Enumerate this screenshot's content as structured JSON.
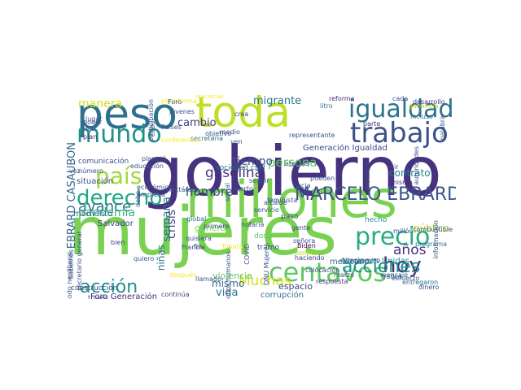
{
  "words": [
    {
      "text": "mujeres",
      "color": "#7ad151"
    },
    {
      "text": "gobierno",
      "color": "#46327e"
    },
    {
      "text": "millones",
      "color": "#7ad151"
    },
    {
      "text": "peso",
      "color": "#2c728e"
    },
    {
      "text": "toda",
      "color": "#bddf26"
    },
    {
      "text": "igualdad",
      "color": "#2c728e"
    },
    {
      "text": "trabajo",
      "color": "#3b528b"
    },
    {
      "text": "centavos",
      "color": "#5ec962"
    },
    {
      "text": "mundo",
      "color": "#21918c"
    },
    {
      "text": "derecho",
      "color": "#22a884"
    },
    {
      "text": "país",
      "color": "#a0da39"
    },
    {
      "text": "precio",
      "color": "#27ad81"
    },
    {
      "text": "Unidos",
      "color": "#482878"
    },
    {
      "text": "MARCELO EBRARD",
      "color": "#3b528b"
    },
    {
      "text": "hoy",
      "color": "#472d7b"
    },
    {
      "text": "acción",
      "color": "#21918c"
    },
    {
      "text": "acciones",
      "color": "#21918c"
    },
    {
      "text": "gasolina",
      "color": "#46327e"
    },
    {
      "text": "EBRARD CASAUBON",
      "color": "#31688e"
    },
    {
      "text": "avance",
      "color": "#2a788e"
    },
    {
      "text": "pandemia",
      "color": "#35b779"
    },
    {
      "text": "hombre",
      "color": "#3e4989"
    },
    {
      "text": "Muchas",
      "color": "#d2e21b"
    },
    {
      "text": "persona",
      "color": "#5ec962"
    },
    {
      "text": "años",
      "color": "#472d7b"
    },
    {
      "text": "manera",
      "color": "#d2e21b"
    },
    {
      "text": "migrante",
      "color": "#2c728e"
    },
    {
      "text": "cambio",
      "color": "#443983"
    },
    {
      "text": "semana",
      "color": "#2a788e"
    },
    {
      "text": "crisis",
      "color": "#414487"
    },
    {
      "text": "niñas",
      "color": "#2c728e"
    },
    {
      "text": "público",
      "color": "#b5de2b"
    },
    {
      "text": "contrato",
      "color": "#25858e"
    },
    {
      "text": "tiempo",
      "color": "#3b528b"
    },
    {
      "text": "vida",
      "color": "#2a788e"
    },
    {
      "text": "mismo",
      "color": "#31688e"
    },
    {
      "text": "género",
      "color": "#73d056"
    },
    {
      "text": "Nacional",
      "color": "#fde725"
    },
    {
      "text": "espacio",
      "color": "#414487"
    },
    {
      "text": "Generación Igualdad",
      "color": "#3e4989"
    },
    {
      "text": "Naciones Unidas",
      "color": "#1f988b"
    },
    {
      "text": "construcción",
      "color": "#3e4989"
    },
    {
      "text": "Foro Generación",
      "color": "#472d7b"
    },
    {
      "text": "corrupción",
      "color": "#2c728e"
    },
    {
      "text": "violencia",
      "color": "#5ec962"
    },
    {
      "text": "mexicano",
      "color": "#31688e"
    },
    {
      "text": "situación",
      "color": "#3b528b"
    },
    {
      "text": "comunicación",
      "color": "#3b528b"
    },
    {
      "text": "Salvador",
      "color": "#414487"
    },
    {
      "text": "momento",
      "color": "#31688e"
    },
    {
      "text": "ganancia",
      "color": "#c8e020"
    },
    {
      "text": "desarrollo",
      "color": "#46327e"
    },
    {
      "text": "programa",
      "color": "#2a788e"
    },
    {
      "text": "combustible",
      "color": "#3b528b"
    },
    {
      "text": "global",
      "color": "#2c728e"
    },
    {
      "text": "Francia",
      "color": "#414487"
    },
    {
      "text": "continúa",
      "color": "#3e4989"
    },
    {
      "text": "sociedad civil",
      "color": "#2c728e"
    },
    {
      "text": "plataforma",
      "color": "#fde725"
    },
    {
      "text": "jóvenes",
      "color": "#3b528b"
    },
    {
      "text": "hecho",
      "color": "#21918c"
    },
    {
      "text": "gente",
      "color": "#3e4989"
    },
    {
      "text": "reforma",
      "color": "#46327e"
    },
    {
      "text": "millón",
      "color": "#3e4989"
    },
    {
      "text": "Biden",
      "color": "#440154"
    },
    {
      "text": "política",
      "color": "#b5de2b"
    },
    {
      "text": "respuesta",
      "color": "#472d7b"
    },
    {
      "text": "tramo",
      "color": "#3b528b"
    },
    {
      "text": "dosis",
      "color": "#5ec962"
    },
    {
      "text": "hacia",
      "color": "#3b528b"
    },
    {
      "text": "paso",
      "color": "#3b528b"
    },
    {
      "text": "parte",
      "color": "#472d7b"
    },
    {
      "text": "misma",
      "color": "#472d7b"
    },
    {
      "text": "incluso",
      "color": "#2c728e"
    },
    {
      "text": "señora",
      "color": "#3b528b"
    },
    {
      "text": "marzo",
      "color": "#414487"
    },
    {
      "text": "colocación",
      "color": "#3e4989"
    },
    {
      "text": "haciendo",
      "color": "#414487"
    },
    {
      "text": "litro",
      "color": "#2c728e"
    },
    {
      "text": "cabo",
      "color": "#3b528b"
    },
    {
      "text": "lugar",
      "color": "#3b528b"
    },
    {
      "text": "sólo",
      "color": "#3e4989"
    },
    {
      "text": "plan",
      "color": "#472d7b"
    },
    {
      "text": "poder",
      "color": "#3e4989"
    },
    {
      "text": "número",
      "color": "#3b528b"
    },
    {
      "text": "bien",
      "color": "#3e4989"
    },
    {
      "text": "vez",
      "color": "#3b528b"
    },
    {
      "text": "fin",
      "color": "#3b528b"
    },
    {
      "text": "primera",
      "color": "#3b528b"
    },
    {
      "text": "quisiera",
      "color": "#3b528b"
    },
    {
      "text": "ir",
      "color": "#3b528b"
    },
    {
      "text": "Tobata",
      "color": "#fde725"
    },
    {
      "text": "COVID",
      "color": "#3b528b"
    },
    {
      "text": "llamado",
      "color": "#3b528b"
    },
    {
      "text": "mensaje",
      "color": "#2c728e"
    },
    {
      "text": "entregaron",
      "color": "#2c728e"
    },
    {
      "text": "dinero",
      "color": "#3b528b"
    },
    {
      "text": "esfuerzo",
      "color": "#3b528b"
    },
    {
      "text": "través",
      "color": "#3b528b"
    },
    {
      "text": "Sabemos",
      "color": "#3b528b"
    },
    {
      "text": "quiero",
      "color": "#3b528b"
    },
    {
      "text": "después",
      "color": "#fde725"
    },
    {
      "text": "empresa",
      "color": "#3b528b"
    },
    {
      "text": "debe",
      "color": "#3b528b"
    },
    {
      "text": "Foro",
      "color": "#3b528b"
    },
    {
      "text": "Paises",
      "color": "#3b528b"
    },
    {
      "text": "secretaria",
      "color": "#2c728e"
    },
    {
      "text": "objetivo",
      "color": "#3b528b"
    },
    {
      "text": "medio",
      "color": "#3b528b"
    },
    {
      "text": "ven",
      "color": "#3b528b"
    },
    {
      "text": "social",
      "color": "#3b528b"
    },
    {
      "text": "pueden",
      "color": "#3b528b"
    },
    {
      "text": "alcalde",
      "color": "#3b528b"
    },
    {
      "text": "representante",
      "color": "#3b528b"
    },
    {
      "text": "seguir",
      "color": "#3b528b"
    },
    {
      "text": "servicio",
      "color": "#3b528b"
    },
    {
      "text": "atender",
      "color": "#3b528b"
    },
    {
      "text": "notaría",
      "color": "#3b528b"
    },
    {
      "text": "feminista",
      "color": "#3b528b"
    },
    {
      "text": "compromiso",
      "color": "#3b528b"
    },
    {
      "text": "cierto",
      "color": "#3b528b"
    },
    {
      "text": "económico",
      "color": "#3b528b"
    },
    {
      "text": "educación",
      "color": "#3b528b"
    },
    {
      "text": "conferencia",
      "color": "#fde725"
    },
    {
      "text": "planteó",
      "color": "#3b528b"
    },
    {
      "text": "hectáreas",
      "color": "#3b528b"
    },
    {
      "text": "participación",
      "color": "#3b528b"
    },
    {
      "text": "cada",
      "color": "#3b528b"
    },
    {
      "text": "crea",
      "color": "#3b528b"
    },
    {
      "text": "palabra",
      "color": "#3b528b"
    },
    {
      "text": "periodo neoliberal",
      "color": "#3b528b"
    },
    {
      "text": "secretario general",
      "color": "#3b528b"
    },
    {
      "text": "derechos humanos",
      "color": "#3b528b"
    },
    {
      "text": "eléctrica",
      "color": "#3b528b"
    },
    {
      "text": "información",
      "color": "#3b528b"
    },
    {
      "text": "ONU Mujeres",
      "color": "#3b528b"
    },
    {
      "text": "autoridades",
      "color": "#3b528b"
    },
    {
      "text": "tráfico",
      "color": "#3b528b"
    }
  ]
}
